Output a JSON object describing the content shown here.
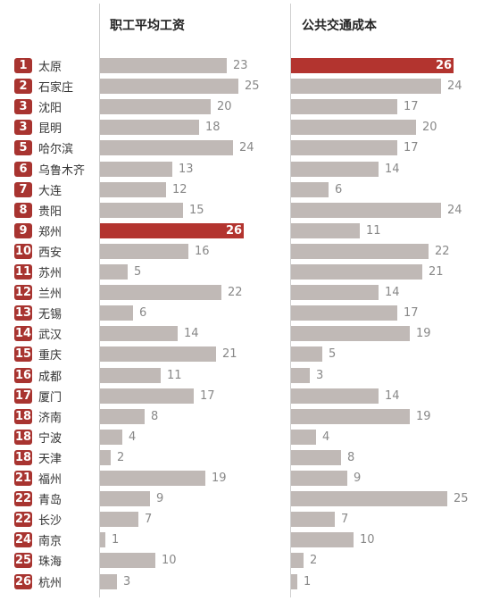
{
  "chart_data": {
    "type": "bar",
    "orientation": "horizontal",
    "series": [
      {
        "name": "职工平均工资",
        "values": [
          23,
          25,
          20,
          18,
          24,
          13,
          12,
          15,
          26,
          16,
          5,
          22,
          6,
          14,
          21,
          11,
          17,
          8,
          4,
          2,
          19,
          9,
          7,
          1,
          10,
          3
        ],
        "highlight_index": 8
      },
      {
        "name": "公共交通成本",
        "values": [
          26,
          24,
          17,
          20,
          17,
          14,
          6,
          24,
          11,
          22,
          21,
          14,
          17,
          19,
          5,
          3,
          14,
          19,
          4,
          8,
          9,
          25,
          7,
          10,
          2,
          1
        ],
        "highlight_index": 0
      }
    ],
    "categories": [
      "太原",
      "石家庄",
      "沈阳",
      "昆明",
      "哈尔滨",
      "乌鲁木齐",
      "大连",
      "贵阳",
      "郑州",
      "西安",
      "苏州",
      "兰州",
      "无锡",
      "武汉",
      "重庆",
      "成都",
      "厦门",
      "济南",
      "宁波",
      "天津",
      "福州",
      "青岛",
      "长沙",
      "南京",
      "珠海",
      "杭州"
    ],
    "ranks": [
      "1",
      "2",
      "3",
      "3",
      "5",
      "6",
      "7",
      "8",
      "9",
      "10",
      "11",
      "12",
      "13",
      "14",
      "15",
      "16",
      "17",
      "18",
      "18",
      "18",
      "21",
      "22",
      "22",
      "24",
      "25",
      "26"
    ],
    "xlim": [
      0,
      26
    ],
    "colors": {
      "bar": "#c0b9b6",
      "highlight": "#b3342f",
      "rank_badge": "#a83430"
    }
  }
}
